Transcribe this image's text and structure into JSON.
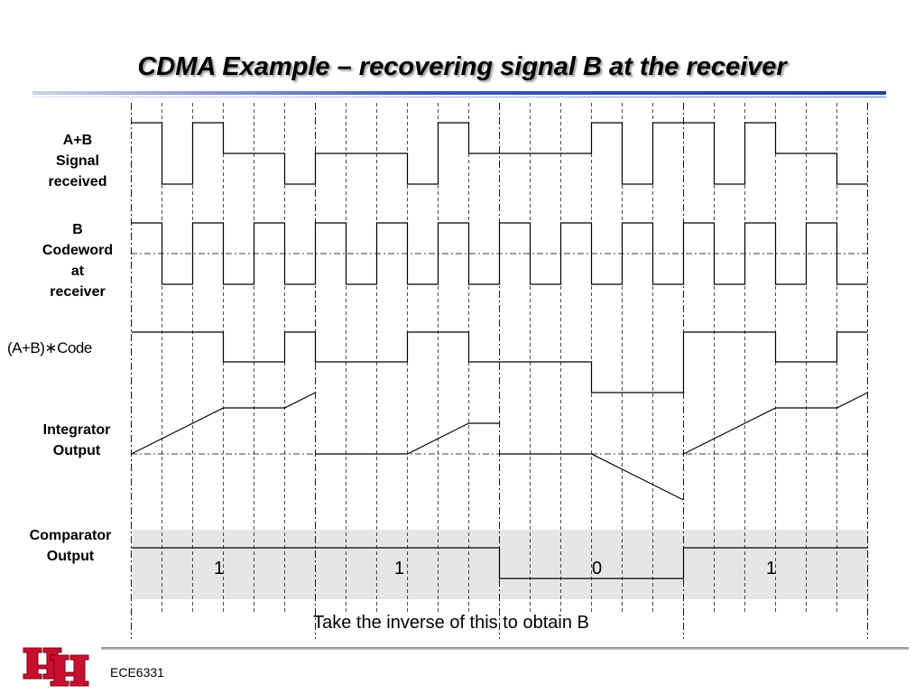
{
  "slide": {
    "title": "CDMA Example – recovering signal B at the receiver",
    "caption": "Take the inverse of this to obtain B",
    "footer": "ECE6331",
    "logo": "UH"
  },
  "labels": {
    "ab_signal": [
      "A+B",
      "Signal",
      "received"
    ],
    "b_codeword": [
      "B",
      "Codeword",
      "at",
      "receiver"
    ],
    "product": "(A+B)∗Code",
    "integrator": [
      "Integrator",
      "Output"
    ],
    "comparator": [
      "Comparator",
      "Output"
    ]
  },
  "comparator_bits": [
    "1",
    "1",
    "0",
    "1"
  ],
  "waveforms": {
    "chips_per_bit": 6,
    "ab_signal_levels": [
      1,
      -1,
      1,
      0,
      0,
      -1,
      0,
      0,
      0,
      -1,
      1,
      0,
      0,
      0,
      0,
      1,
      -1,
      1,
      1,
      -1,
      1,
      0,
      0,
      -1
    ],
    "b_code_levels": [
      1,
      -1,
      1,
      -1,
      1,
      -1,
      1,
      -1,
      1,
      -1,
      1,
      -1,
      1,
      -1,
      1,
      -1,
      1,
      -1,
      1,
      -1,
      1,
      -1,
      1,
      -1
    ],
    "product_levels": [
      1,
      1,
      1,
      0,
      0,
      1,
      0,
      0,
      0,
      1,
      1,
      0,
      0,
      0,
      0,
      -1,
      -1,
      -1,
      1,
      1,
      1,
      0,
      0,
      1
    ]
  },
  "colors": {
    "waveform": "#000000",
    "gridline": "#000000",
    "comparator_band": "#e6e6e6",
    "logo_red": "#c8102e"
  }
}
